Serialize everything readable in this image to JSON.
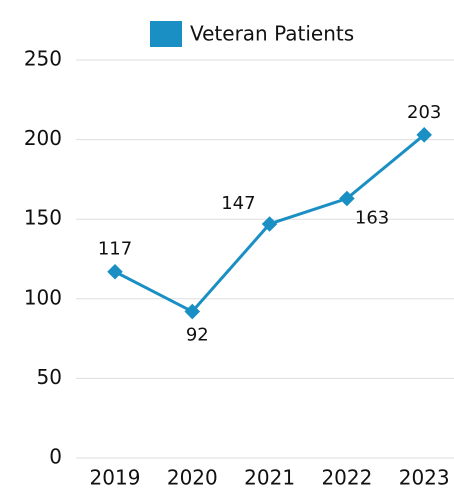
{
  "chart_data": {
    "type": "line",
    "categories": [
      "2019",
      "2020",
      "2021",
      "2022",
      "2023"
    ],
    "series": [
      {
        "name": "Veteran Patients",
        "color": "#1a8fc4",
        "values": [
          117,
          92,
          147,
          163,
          203
        ]
      }
    ],
    "ylim": [
      0,
      250
    ],
    "yticks": [
      0,
      50,
      100,
      150,
      200,
      250
    ],
    "grid": true,
    "legend": "top"
  }
}
